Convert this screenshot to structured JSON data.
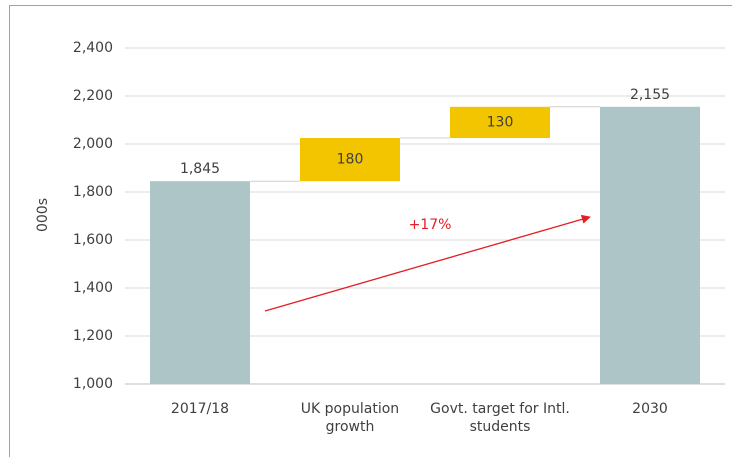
{
  "chart_data": {
    "type": "waterfall",
    "categories": [
      "2017/18",
      "UK population growth",
      "Govt. target for Intl. students",
      "2030"
    ],
    "values": [
      1845,
      180,
      130,
      2155
    ],
    "value_labels": [
      "1,845",
      "180",
      "130",
      "2,155"
    ],
    "measure": [
      "absolute",
      "relative",
      "relative",
      "absolute"
    ],
    "total_color": "#adc5c6",
    "delta_color": "#f2c500",
    "ylabel": "000s",
    "annotation": "+17%",
    "ylim": [
      1000,
      2400
    ],
    "yticks": [
      {
        "value": 1000,
        "label": "1,000"
      },
      {
        "value": 1200,
        "label": "1,200"
      },
      {
        "value": 1400,
        "label": "1,400"
      },
      {
        "value": 1600,
        "label": "1,600"
      },
      {
        "value": 1800,
        "label": "1,800"
      },
      {
        "value": 2000,
        "label": "2,000"
      },
      {
        "value": 2200,
        "label": "2,200"
      },
      {
        "value": 2400,
        "label": "2,400"
      }
    ],
    "grid": true
  }
}
